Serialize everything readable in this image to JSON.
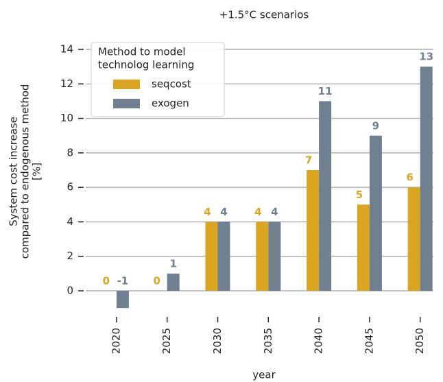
{
  "chart_data": {
    "type": "bar",
    "title": "+1.5°C scenarios",
    "x_label": "year",
    "y_label": [
      "System cost increase",
      "compared to endogenous method",
      "[%]"
    ],
    "legend_title": [
      "Method to model",
      "technolog learning"
    ],
    "legend_position": "upper left",
    "categories": [
      "2020",
      "2025",
      "2030",
      "2035",
      "2040",
      "2045",
      "2050"
    ],
    "series": [
      {
        "name": "seqcost",
        "color": "#daa520",
        "values": [
          0,
          0,
          4,
          4,
          7,
          5,
          6
        ]
      },
      {
        "name": "exogen",
        "color": "#708090",
        "values": [
          -1,
          1,
          4,
          4,
          11,
          9,
          13
        ]
      }
    ],
    "ylim": [
      -1.3,
      14.5
    ],
    "yticks": [
      0,
      2,
      4,
      6,
      8,
      10,
      12,
      14
    ],
    "grid": true
  }
}
